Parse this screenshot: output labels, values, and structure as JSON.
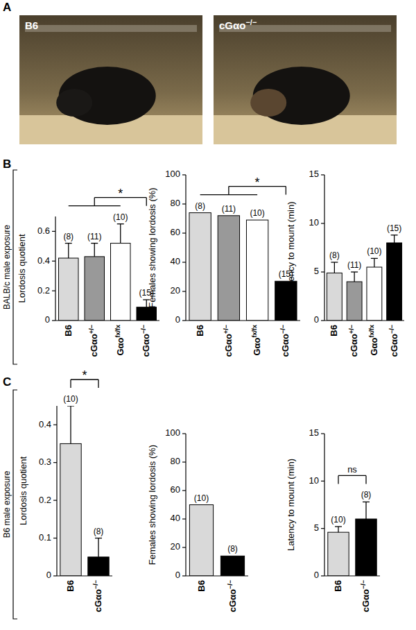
{
  "panels": [
    {
      "label": "A",
      "photos": [
        "B6",
        "cGαo−/−"
      ]
    },
    {
      "label": "B",
      "side_label": "BALB/c male exposure"
    },
    {
      "label": "C",
      "side_label": "B6 male exposure"
    }
  ],
  "chart_data": [
    {
      "type": "bar",
      "ylabel": "Lordosis quotient",
      "categories": [
        "B6",
        "cGαo+/−",
        "Gαofx/fx",
        "cGαo−/−"
      ],
      "values": [
        0.42,
        0.43,
        0.52,
        0.09
      ],
      "error": [
        0.1,
        0.09,
        0.13,
        0.05
      ],
      "colors": [
        "#d9d9d9",
        "#999999",
        "#ffffff",
        "#000000"
      ],
      "ylim": [
        0,
        0.7
      ],
      "yticks": [
        0,
        0.2,
        0.4,
        0.6
      ],
      "annotations": {
        "n": [
          "(8)",
          "(11)",
          "(10)",
          "(15)"
        ],
        "significance": {
          "text": "*",
          "groups": [
            [
              0,
              1,
              2
            ],
            [
              3
            ]
          ]
        }
      }
    },
    {
      "type": "bar",
      "ylabel": "Females showing lordosis (%)",
      "categories": [
        "B6",
        "cGαo+/−",
        "Gαofx/fx",
        "cGαo−/−"
      ],
      "values": [
        74,
        72,
        69,
        27
      ],
      "colors": [
        "#d9d9d9",
        "#999999",
        "#ffffff",
        "#000000"
      ],
      "ylim": [
        0,
        100
      ],
      "yticks": [
        0,
        20,
        40,
        60,
        80,
        100
      ],
      "annotations": {
        "n": [
          "(8)",
          "(11)",
          "(10)",
          "(15)"
        ],
        "significance": {
          "text": "*",
          "groups": [
            [
              0,
              1,
              2
            ],
            [
              3
            ]
          ]
        }
      }
    },
    {
      "type": "bar",
      "ylabel": "Latency to mount (min)",
      "categories": [
        "B6",
        "cGαo+/−",
        "Gαofx/fx",
        "cGαo−/−"
      ],
      "values": [
        4.9,
        4.0,
        5.5,
        8.0
      ],
      "error": [
        1.1,
        1.0,
        0.9,
        0.8
      ],
      "colors": [
        "#d9d9d9",
        "#999999",
        "#ffffff",
        "#000000"
      ],
      "ylim": [
        0,
        15
      ],
      "yticks": [
        0,
        5,
        10,
        15
      ],
      "annotations": {
        "n": [
          "(8)",
          "(11)",
          "(10)",
          "(15)"
        ]
      }
    },
    {
      "type": "bar",
      "ylabel": "Lordosis quotient",
      "categories": [
        "B6",
        "cGαo−/−"
      ],
      "values": [
        0.35,
        0.05
      ],
      "error": [
        0.1,
        0.05
      ],
      "colors": [
        "#d9d9d9",
        "#000000"
      ],
      "ylim": [
        0,
        0.45
      ],
      "yticks": [
        0,
        0.1,
        0.2,
        0.3,
        0.4
      ],
      "annotations": {
        "n": [
          "(10)",
          "(8)"
        ],
        "significance": {
          "text": "*",
          "groups": [
            [
              0
            ],
            [
              1
            ]
          ]
        }
      }
    },
    {
      "type": "bar",
      "ylabel": "Females showing lordosis (%)",
      "categories": [
        "B6",
        "cGαo−/−"
      ],
      "values": [
        50,
        14
      ],
      "colors": [
        "#d9d9d9",
        "#000000"
      ],
      "ylim": [
        0,
        100
      ],
      "yticks": [
        0,
        20,
        40,
        60,
        80,
        100
      ],
      "annotations": {
        "n": [
          "(10)",
          "(8)"
        ]
      }
    },
    {
      "type": "bar",
      "ylabel": "Latency to mount (min)",
      "categories": [
        "B6",
        "cGαo−/−"
      ],
      "values": [
        4.6,
        6.0
      ],
      "error": [
        0.6,
        1.8
      ],
      "colors": [
        "#d9d9d9",
        "#000000"
      ],
      "ylim": [
        0,
        15
      ],
      "yticks": [
        0,
        5,
        10,
        15
      ],
      "annotations": {
        "n": [
          "(10)",
          "(8)"
        ],
        "significance": {
          "text": "ns",
          "groups": [
            [
              0
            ],
            [
              1
            ]
          ]
        }
      }
    }
  ]
}
